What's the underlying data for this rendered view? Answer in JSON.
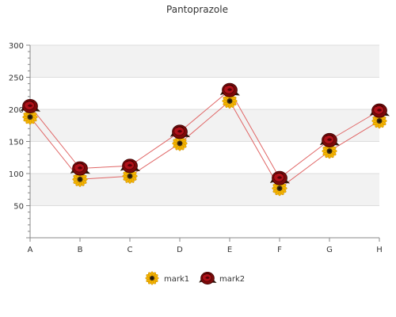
{
  "chart_data": {
    "type": "line",
    "title": "Pantoprazole",
    "categories": [
      "A",
      "B",
      "C",
      "D",
      "E",
      "F",
      "G",
      "H"
    ],
    "series": [
      {
        "name": "mark1",
        "values": [
          188,
          91,
          96,
          147,
          213,
          77,
          135,
          182
        ],
        "color": "#e06666",
        "marker": "sunflower-icon"
      },
      {
        "name": "mark2",
        "values": [
          205,
          108,
          112,
          165,
          230,
          93,
          152,
          198
        ],
        "color": "#e06666",
        "marker": "rose-icon"
      }
    ],
    "ylim": [
      0,
      300
    ],
    "yticks": [
      50,
      100,
      150,
      200,
      250,
      300
    ],
    "grid": true,
    "legend": "bottom"
  }
}
